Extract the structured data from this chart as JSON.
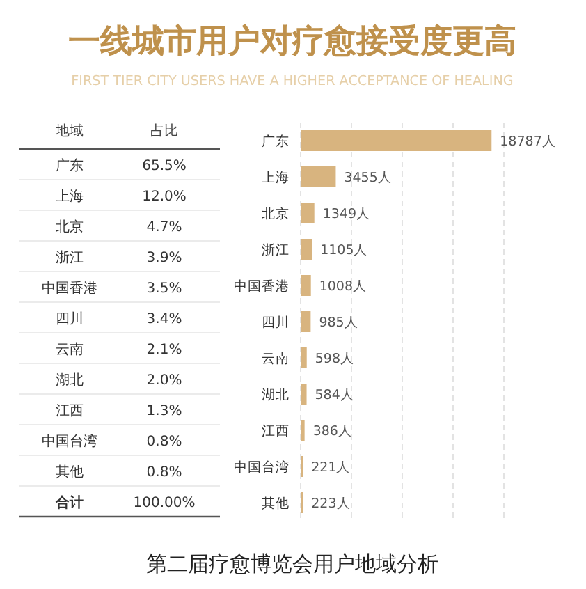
{
  "chart_data": [
    {
      "type": "other",
      "title": "一线城市用户对疗愈接受度更高",
      "subtitle": "FIRST TIER CITY USERS HAVE A HIGHER ACCEPTANCE OF HEALING",
      "xlabel": "地域",
      "ylabel": "占比",
      "categories": [
        "广东",
        "上海",
        "北京",
        "浙江",
        "中国香港",
        "四川",
        "云南",
        "湖北",
        "江西",
        "中国台湾",
        "其他",
        "合计"
      ],
      "value_labels": [
        "65.5%",
        "12.0%",
        "4.7%",
        "3.9%",
        "3.5%",
        "3.4%",
        "2.1%",
        "2.0%",
        "1.3%",
        "0.8%",
        "0.8%",
        "100.00%"
      ]
    },
    {
      "type": "bar",
      "orientation": "horizontal",
      "color": "#d8b47f",
      "categories": [
        "广东",
        "上海",
        "北京",
        "浙江",
        "中国香港",
        "四川",
        "云南",
        "湖北",
        "江西",
        "中国台湾",
        "其他"
      ],
      "values": [
        18787,
        3455,
        1349,
        1105,
        1008,
        985,
        598,
        584,
        386,
        221,
        223
      ],
      "value_labels": [
        "18787人",
        "3455人",
        "1349人",
        "1105人",
        "1008人",
        "985人",
        "598人",
        "584人",
        "386人",
        "221人",
        "223人"
      ],
      "xticks": [
        {
          "value": 0,
          "label": null
        },
        {
          "value": 5000,
          "label": null
        },
        {
          "value": 10000,
          "label": null
        },
        {
          "value": 15000,
          "label": null
        },
        {
          "value": 20000,
          "label": null
        }
      ],
      "grid": "x",
      "annotations": [
        "第二届疗愈博览会用户地域分析"
      ]
    }
  ]
}
